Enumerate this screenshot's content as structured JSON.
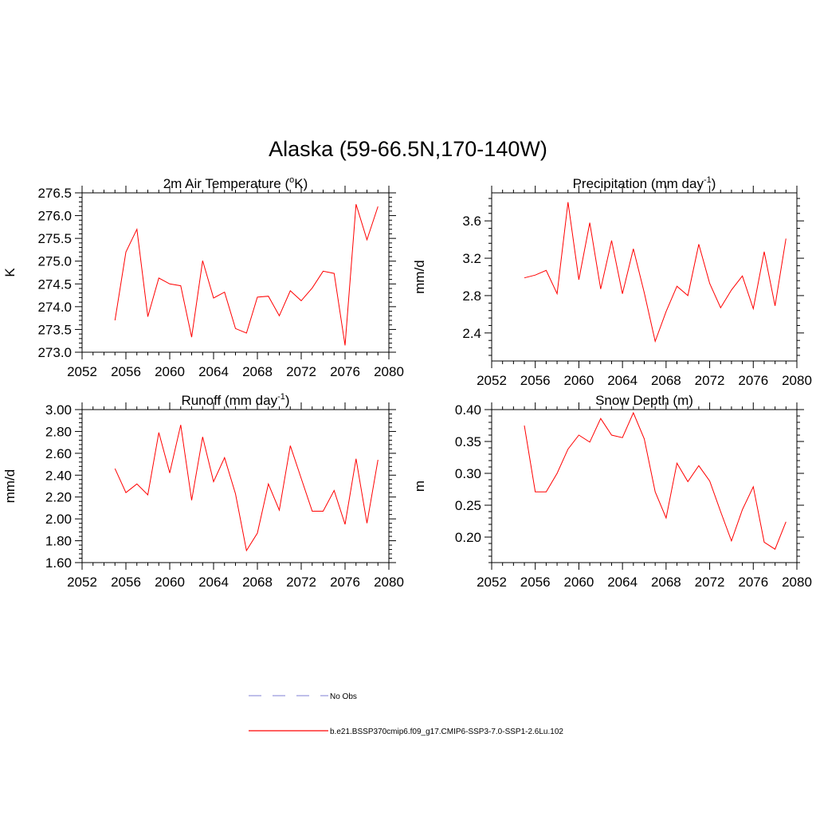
{
  "figure": {
    "title": "Alaska (59-66.5N,170-140W)"
  },
  "colors": {
    "series_line": "#ff0000",
    "obs_line": "#9999dd",
    "axis": "#000000"
  },
  "legend": {
    "entries": [
      {
        "label": "No Obs",
        "style": "dashed",
        "color": "#9999dd"
      },
      {
        "label": "b.e21.BSSP370cmip6.f09_g17.CMIP6-SSP3-7.0-SSP1-2.6Lu.102",
        "style": "solid",
        "color": "#ff0000"
      }
    ]
  },
  "chart_data": [
    {
      "type": "line",
      "title": "2m Air Temperature (",
      "title_sup": "o",
      "title_after": "K)",
      "xlabel": "",
      "ylabel": "K",
      "xlim": [
        2052,
        2080
      ],
      "ylim": [
        273.0,
        276.5
      ],
      "xticks": [
        2052,
        2056,
        2060,
        2064,
        2068,
        2072,
        2076,
        2080
      ],
      "yticks": [
        273.0,
        273.5,
        274.0,
        274.5,
        275.0,
        275.5,
        276.0,
        276.5
      ],
      "ytick_decimals": 1,
      "x": [
        2055,
        2056,
        2057,
        2058,
        2059,
        2060,
        2061,
        2062,
        2063,
        2064,
        2065,
        2066,
        2067,
        2068,
        2069,
        2070,
        2071,
        2072,
        2073,
        2074,
        2075,
        2076,
        2077,
        2078,
        2079
      ],
      "series": [
        {
          "values": [
            273.7,
            275.2,
            275.7,
            273.78,
            274.63,
            274.5,
            274.46,
            273.33,
            275.01,
            274.19,
            274.32,
            273.52,
            273.42,
            274.21,
            274.23,
            273.8,
            274.35,
            274.13,
            274.41,
            274.78,
            274.73,
            273.15,
            276.25,
            275.47,
            276.2
          ]
        }
      ],
      "grid": false
    },
    {
      "type": "line",
      "title": "Precipitation (mm day",
      "title_sup": "-1",
      "title_after": ")",
      "xlabel": "",
      "ylabel": "mm/d",
      "xlim": [
        2052,
        2080
      ],
      "ylim": [
        2.1,
        3.9
      ],
      "xticks": [
        2052,
        2056,
        2060,
        2064,
        2068,
        2072,
        2076,
        2080
      ],
      "yticks": [
        2.4,
        2.8,
        3.2,
        3.6
      ],
      "ytick_decimals": 1,
      "x": [
        2055,
        2056,
        2057,
        2058,
        2059,
        2060,
        2061,
        2062,
        2063,
        2064,
        2065,
        2066,
        2067,
        2068,
        2069,
        2070,
        2071,
        2072,
        2073,
        2074,
        2075,
        2076,
        2077,
        2078,
        2079
      ],
      "series": [
        {
          "values": [
            2.99,
            3.02,
            3.07,
            2.82,
            3.8,
            2.97,
            3.58,
            2.87,
            3.39,
            2.82,
            3.3,
            2.83,
            2.31,
            2.63,
            2.9,
            2.8,
            3.35,
            2.93,
            2.67,
            2.86,
            3.01,
            2.66,
            3.27,
            2.69,
            3.41
          ]
        }
      ],
      "grid": false
    },
    {
      "type": "line",
      "title": "Runoff (mm day",
      "title_sup": "-1",
      "title_after": ")",
      "xlabel": "",
      "ylabel": "mm/d",
      "xlim": [
        2052,
        2080
      ],
      "ylim": [
        1.6,
        3.0
      ],
      "xticks": [
        2052,
        2056,
        2060,
        2064,
        2068,
        2072,
        2076,
        2080
      ],
      "yticks": [
        1.6,
        1.8,
        2.0,
        2.2,
        2.4,
        2.6,
        2.8,
        3.0
      ],
      "ytick_decimals": 2,
      "x": [
        2055,
        2056,
        2057,
        2058,
        2059,
        2060,
        2061,
        2062,
        2063,
        2064,
        2065,
        2066,
        2067,
        2068,
        2069,
        2070,
        2071,
        2072,
        2073,
        2074,
        2075,
        2076,
        2077,
        2078,
        2079
      ],
      "series": [
        {
          "values": [
            2.46,
            2.24,
            2.32,
            2.22,
            2.79,
            2.42,
            2.86,
            2.17,
            2.75,
            2.34,
            2.56,
            2.23,
            1.71,
            1.87,
            2.32,
            2.08,
            2.67,
            2.37,
            2.07,
            2.07,
            2.26,
            1.95,
            2.55,
            1.96,
            2.54
          ]
        }
      ],
      "grid": false
    },
    {
      "type": "line",
      "title": "Snow Depth (m)",
      "title_sup": "",
      "title_after": "",
      "xlabel": "",
      "ylabel": "m",
      "xlim": [
        2052,
        2080
      ],
      "ylim": [
        0.16,
        0.4
      ],
      "xticks": [
        2052,
        2056,
        2060,
        2064,
        2068,
        2072,
        2076,
        2080
      ],
      "yticks": [
        0.2,
        0.25,
        0.3,
        0.35,
        0.4
      ],
      "ytick_decimals": 2,
      "x": [
        2055,
        2056,
        2057,
        2058,
        2059,
        2060,
        2061,
        2062,
        2063,
        2064,
        2065,
        2066,
        2067,
        2068,
        2069,
        2070,
        2071,
        2072,
        2073,
        2074,
        2075,
        2076,
        2077,
        2078,
        2079
      ],
      "series": [
        {
          "values": [
            0.375,
            0.271,
            0.271,
            0.3,
            0.338,
            0.36,
            0.349,
            0.386,
            0.36,
            0.356,
            0.395,
            0.354,
            0.271,
            0.23,
            0.316,
            0.287,
            0.312,
            0.288,
            0.24,
            0.194,
            0.243,
            0.279,
            0.192,
            0.181,
            0.224
          ]
        }
      ],
      "grid": false
    }
  ]
}
